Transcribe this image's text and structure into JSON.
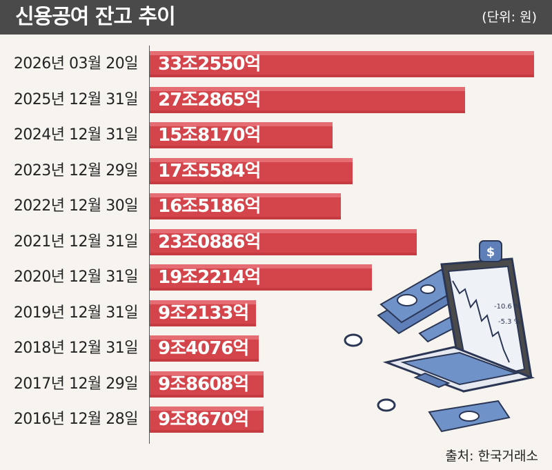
{
  "header": {
    "title": "신용공여 잔고 추이",
    "unit": "(단위: 원)"
  },
  "source": "출처: 한국거래소",
  "chart_data": {
    "type": "bar",
    "orientation": "horizontal",
    "title": "신용공여 잔고 추이",
    "unit_label": "(단위: 원)",
    "categories": [
      "2026년 03월 20일",
      "2025년 12월 31일",
      "2024년 12월 31일",
      "2023년 12월 29일",
      "2022년 12월 30일",
      "2021년 12월 31일",
      "2020년 12월 31일",
      "2019년 12월 31일",
      "2018년 12월 31일",
      "2017년 12월 29일",
      "2016년 12월 28일"
    ],
    "values": [
      33255000000000,
      27286500000000,
      15817000000000,
      17558400000000,
      16518600000000,
      23088600000000,
      19221400000000,
      9213300000000,
      9407600000000,
      9860800000000,
      9867000000000
    ],
    "value_labels": [
      "33조2550억",
      "27조2865억",
      "15조8170억",
      "17조5584억",
      "16조5186억",
      "23조0886억",
      "19조2214억",
      "9조2133억",
      "9조4076억",
      "9조8608억",
      "9조8670억"
    ],
    "xlim": [
      0,
      33255000000000
    ],
    "bar_color": "#d4454b",
    "grid": false,
    "legend": "none"
  },
  "illustration": {
    "screen_labels": [
      "-10.6 %",
      "-5.3 %"
    ],
    "icon": "laptop-dollar-icon"
  }
}
